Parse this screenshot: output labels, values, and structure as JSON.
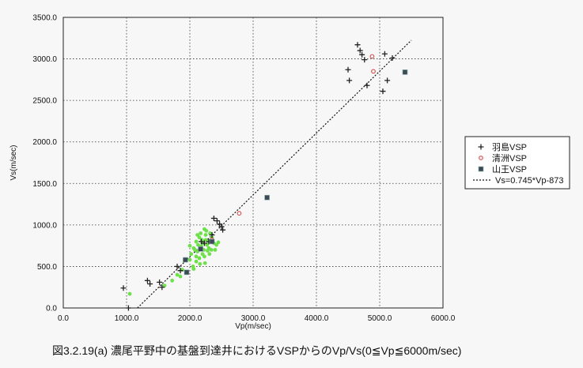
{
  "chart_data": {
    "type": "scatter",
    "title": "",
    "caption": "図3.2.19(a)  濃尾平野中の基盤到達井におけるVSPからのVp/Vs(0≦Vp≦6000m/sec)",
    "xlabel": "Vp(m/sec)",
    "ylabel": "Vs(m/sec)",
    "xlim": [
      0,
      6000
    ],
    "ylim": [
      0,
      3500
    ],
    "x_ticks": [
      "0.0",
      "1000.0",
      "2000.0",
      "3000.0",
      "4000.0",
      "5000.0",
      "6000.0"
    ],
    "y_ticks": [
      "0.0",
      "500.0",
      "1000.0",
      "1500.0",
      "2000.0",
      "2500.0",
      "3000.0",
      "3500.0"
    ],
    "grid": "dotted",
    "legend_position": "right",
    "background_points": {
      "color": "#6ee04a",
      "points": [
        [
          1050,
          170
        ],
        [
          1600,
          270
        ],
        [
          1720,
          330
        ],
        [
          1800,
          400
        ],
        [
          1850,
          380
        ],
        [
          1880,
          460
        ],
        [
          1950,
          420
        ],
        [
          2000,
          580
        ],
        [
          2020,
          650
        ],
        [
          2050,
          500
        ],
        [
          2060,
          720
        ],
        [
          2080,
          700
        ],
        [
          2100,
          620
        ],
        [
          2100,
          800
        ],
        [
          2120,
          680
        ],
        [
          2130,
          760
        ],
        [
          2150,
          600
        ],
        [
          2150,
          850
        ],
        [
          2170,
          900
        ],
        [
          2180,
          740
        ],
        [
          2200,
          650
        ],
        [
          2200,
          780
        ],
        [
          2220,
          700
        ],
        [
          2230,
          950
        ],
        [
          2250,
          880
        ],
        [
          2250,
          820
        ],
        [
          2270,
          760
        ],
        [
          2280,
          690
        ],
        [
          2300,
          800
        ],
        [
          2300,
          720
        ],
        [
          2320,
          900
        ],
        [
          2350,
          850
        ],
        [
          2380,
          780
        ],
        [
          2400,
          700
        ],
        [
          2420,
          760
        ],
        [
          2450,
          790
        ],
        [
          2100,
          560
        ],
        [
          2160,
          530
        ],
        [
          2060,
          470
        ],
        [
          2230,
          620
        ],
        [
          2190,
          820
        ],
        [
          2120,
          880
        ],
        [
          2310,
          650
        ],
        [
          2240,
          540
        ],
        [
          2000,
          750
        ],
        [
          2150,
          700
        ],
        [
          2260,
          930
        ],
        [
          2340,
          700
        ]
      ]
    },
    "series": [
      {
        "name": "羽島VSP",
        "marker": "plus",
        "color": "#222222",
        "points": [
          [
            950,
            240
          ],
          [
            1030,
            0
          ],
          [
            1330,
            330
          ],
          [
            1370,
            290
          ],
          [
            1520,
            310
          ],
          [
            1560,
            250
          ],
          [
            1800,
            500
          ],
          [
            1850,
            450
          ],
          [
            2180,
            800
          ],
          [
            2230,
            780
          ],
          [
            2380,
            1080
          ],
          [
            2430,
            1050
          ],
          [
            2470,
            1010
          ],
          [
            2500,
            980
          ],
          [
            2520,
            940
          ],
          [
            2350,
            880
          ],
          [
            2300,
            800
          ],
          [
            4500,
            2870
          ],
          [
            4520,
            2740
          ],
          [
            4650,
            3170
          ],
          [
            4690,
            3100
          ],
          [
            4720,
            3050
          ],
          [
            4760,
            2990
          ],
          [
            4800,
            2680
          ],
          [
            5050,
            2610
          ],
          [
            5080,
            3060
          ],
          [
            5120,
            2740
          ],
          [
            5200,
            3010
          ]
        ]
      },
      {
        "name": "清洲VSP",
        "marker": "circle",
        "color": "#d44a44",
        "points": [
          [
            2350,
            820
          ],
          [
            2780,
            1140
          ],
          [
            4880,
            3030
          ],
          [
            4900,
            2850
          ]
        ]
      },
      {
        "name": "山王VSP",
        "marker": "square",
        "color": "#3c4a56",
        "points": [
          [
            1930,
            580
          ],
          [
            1950,
            430
          ],
          [
            2170,
            710
          ],
          [
            2350,
            800
          ],
          [
            3220,
            1330
          ],
          [
            5400,
            2840
          ]
        ]
      }
    ],
    "fit_line": {
      "name": "Vs=0.745*Vp-873",
      "slope": 0.745,
      "intercept": -873,
      "x_range": [
        1172,
        5500
      ]
    }
  }
}
